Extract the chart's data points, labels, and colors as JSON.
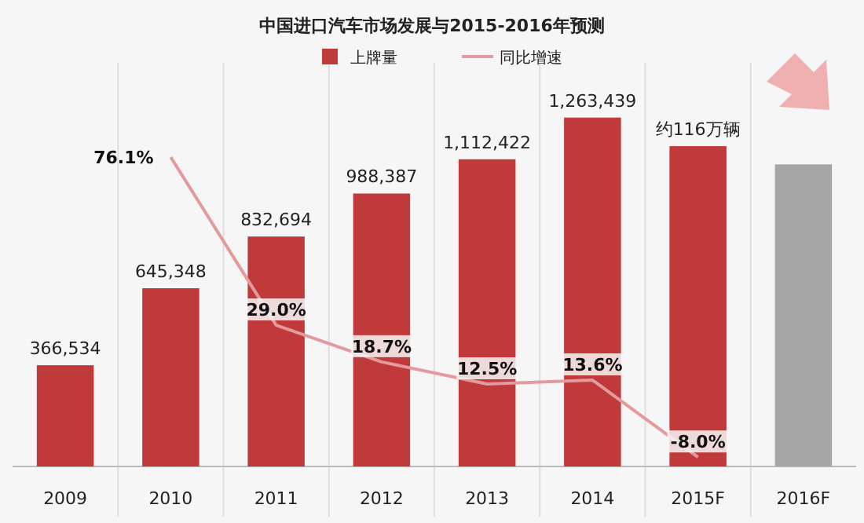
{
  "chart_data": {
    "type": "bar",
    "title": "中国进口汽车市场发展与2015-2016年预测",
    "categories": [
      "2009",
      "2010",
      "2011",
      "2012",
      "2013",
      "2014",
      "2015F",
      "2016F"
    ],
    "series": [
      {
        "name": "上牌量",
        "colors": [
          "#c0393b",
          "#c0393b",
          "#c0393b",
          "#c0393b",
          "#c0393b",
          "#c0393b",
          "#c0393b",
          "#a6a6a6"
        ],
        "color": "#c0393b",
        "values": [
          366534,
          645348,
          832694,
          988387,
          1112422,
          1263439,
          1160000,
          1094000
        ],
        "value_labels": [
          "366,534",
          "645,348",
          "832,694",
          "988,387",
          "1,112,422",
          "1,263,439",
          "约116万辆",
          null
        ]
      },
      {
        "name": "同比增速",
        "type": "line",
        "axis": "y2",
        "color": "#e39a9c",
        "values": [
          null,
          76.1,
          29.0,
          18.7,
          12.5,
          13.6,
          -8.0,
          null
        ],
        "value_labels": [
          null,
          "76.1%",
          "29.0%",
          "18.7%",
          "12.5%",
          "13.6%",
          "-8.0%",
          null
        ]
      }
    ],
    "tick_labels": "x",
    "legend": "top",
    "marker": "none",
    "line_style": "solid"
  }
}
